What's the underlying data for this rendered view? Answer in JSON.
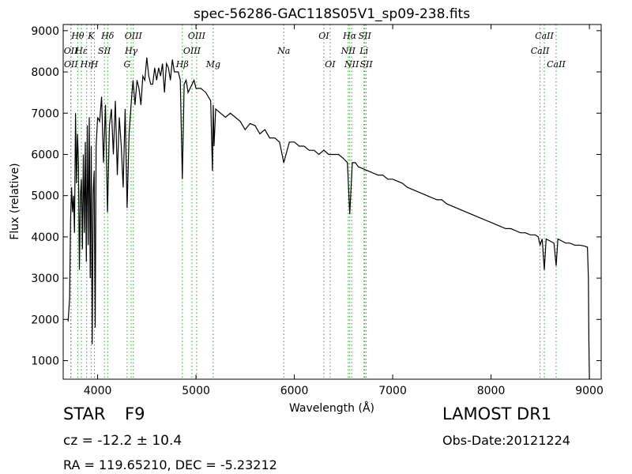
{
  "chart_data": {
    "type": "line",
    "title": "spec-56286-GAC118S05V1_sp09-238.fits",
    "xlabel": "Wavelength (Å)",
    "ylabel": "Flux (relative)",
    "xlim": [
      3650,
      9120
    ],
    "ylim": [
      550,
      9150
    ],
    "xticks": [
      4000,
      5000,
      6000,
      7000,
      8000,
      9000
    ],
    "yticks": [
      1000,
      2000,
      3000,
      4000,
      5000,
      6000,
      7000,
      8000,
      9000
    ],
    "grid": false,
    "line_color": "#000000",
    "marker_color": "#2ca02c",
    "series": [
      {
        "x": [
          3700,
          3715,
          3725,
          3735,
          3745,
          3755,
          3765,
          3775,
          3785,
          3795,
          3805,
          3815,
          3825,
          3835,
          3845,
          3855,
          3865,
          3875,
          3885,
          3895,
          3905,
          3915,
          3925,
          3935,
          3945,
          3955,
          3965,
          3975,
          3985,
          4000,
          4020,
          4040,
          4060,
          4080,
          4101,
          4120,
          4140,
          4160,
          4180,
          4200,
          4220,
          4240,
          4260,
          4280,
          4300,
          4320,
          4340,
          4360,
          4380,
          4400,
          4420,
          4440,
          4460,
          4480,
          4500,
          4520,
          4540,
          4560,
          4580,
          4600,
          4620,
          4640,
          4660,
          4680,
          4700,
          4720,
          4740,
          4760,
          4780,
          4800,
          4820,
          4840,
          4861,
          4880,
          4900,
          4920,
          4940,
          4960,
          4980,
          5000,
          5050,
          5100,
          5150,
          5167,
          5175,
          5183,
          5200,
          5250,
          5300,
          5350,
          5400,
          5450,
          5500,
          5550,
          5600,
          5650,
          5700,
          5750,
          5800,
          5850,
          5893,
          5950,
          6000,
          6050,
          6100,
          6150,
          6200,
          6250,
          6300,
          6350,
          6400,
          6450,
          6500,
          6540,
          6563,
          6590,
          6620,
          6650,
          6700,
          6750,
          6800,
          6850,
          6900,
          6950,
          7000,
          7050,
          7100,
          7150,
          7200,
          7250,
          7300,
          7350,
          7400,
          7450,
          7500,
          7550,
          7600,
          7650,
          7700,
          7750,
          7800,
          7850,
          7900,
          7950,
          8000,
          8050,
          8100,
          8150,
          8200,
          8250,
          8300,
          8350,
          8400,
          8450,
          8480,
          8498,
          8520,
          8542,
          8560,
          8600,
          8640,
          8662,
          8680,
          8720,
          8760,
          8800,
          8850,
          8900,
          8950,
          8980,
          8990,
          8995,
          9000
        ],
        "y": [
          1950,
          2500,
          4400,
          5200,
          4600,
          5000,
          4100,
          7000,
          5300,
          6500,
          5800,
          3200,
          5000,
          5400,
          3700,
          6000,
          4100,
          6300,
          3400,
          6700,
          3800,
          6900,
          3000,
          6200,
          1400,
          5100,
          5600,
          1800,
          6200,
          6900,
          6800,
          7400,
          5800,
          7200,
          4600,
          6700,
          7100,
          6000,
          7300,
          5500,
          6900,
          6200,
          5200,
          7100,
          4700,
          6500,
          7200,
          7800,
          7200,
          7800,
          7600,
          7200,
          7900,
          7800,
          8350,
          7900,
          7700,
          7700,
          8100,
          7800,
          8100,
          7900,
          8200,
          7500,
          8200,
          8100,
          7800,
          8300,
          8000,
          8000,
          8000,
          7800,
          5400,
          7700,
          7800,
          7500,
          7600,
          7700,
          7800,
          7600,
          7600,
          7500,
          7300,
          5600,
          7200,
          6200,
          7100,
          7000,
          6900,
          7000,
          6900,
          6800,
          6600,
          6750,
          6700,
          6500,
          6600,
          6400,
          6400,
          6300,
          5800,
          6300,
          6300,
          6200,
          6200,
          6100,
          6100,
          6000,
          6100,
          6000,
          6000,
          6000,
          5900,
          5800,
          4550,
          5800,
          5800,
          5700,
          5650,
          5600,
          5550,
          5500,
          5500,
          5400,
          5400,
          5350,
          5300,
          5200,
          5150,
          5100,
          5050,
          5000,
          4950,
          4900,
          4900,
          4800,
          4750,
          4700,
          4650,
          4600,
          4550,
          4500,
          4450,
          4400,
          4350,
          4300,
          4250,
          4200,
          4200,
          4150,
          4100,
          4100,
          4050,
          4050,
          4000,
          3800,
          3950,
          3200,
          3950,
          3900,
          3850,
          3300,
          3950,
          3900,
          3850,
          3850,
          3800,
          3800,
          3780,
          3750,
          3000,
          1500,
          550
        ]
      }
    ],
    "lines": [
      {
        "label": "Hθ",
        "x": 3798,
        "row": 1
      },
      {
        "label": "K",
        "x": 3934,
        "row": 1
      },
      {
        "label": "Hδ",
        "x": 4102,
        "row": 1
      },
      {
        "label": "OIII",
        "x": 4363,
        "row": 1
      },
      {
        "label": "OIII",
        "x": 5007,
        "row": 1
      },
      {
        "label": "OI",
        "x": 6300,
        "row": 1
      },
      {
        "label": "Hα",
        "x": 6563,
        "row": 1
      },
      {
        "label": "SII",
        "x": 6716,
        "row": 1
      },
      {
        "label": "CaII",
        "x": 8542,
        "row": 1
      },
      {
        "label": "OII",
        "x": 3727,
        "row": 2
      },
      {
        "label": "Hε",
        "x": 3835,
        "row": 2
      },
      {
        "label": "SII",
        "x": 4069,
        "row": 2
      },
      {
        "label": "Hγ",
        "x": 4341,
        "row": 2
      },
      {
        "label": "OIII",
        "x": 4959,
        "row": 2
      },
      {
        "label": "Na",
        "x": 5893,
        "row": 2
      },
      {
        "label": "NII",
        "x": 6548,
        "row": 2
      },
      {
        "label": "Li",
        "x": 6708,
        "row": 2
      },
      {
        "label": "CaII",
        "x": 8498,
        "row": 2
      },
      {
        "label": "OII",
        "x": 3729,
        "row": 3
      },
      {
        "label": "Hη",
        "x": 3889,
        "row": 3
      },
      {
        "label": "H",
        "x": 3968,
        "row": 3
      },
      {
        "label": "G",
        "x": 4300,
        "row": 3
      },
      {
        "label": "Hβ",
        "x": 4861,
        "row": 3
      },
      {
        "label": "Mg",
        "x": 5175,
        "row": 3
      },
      {
        "label": "OI",
        "x": 6364,
        "row": 3
      },
      {
        "label": "NII",
        "x": 6583,
        "row": 3
      },
      {
        "label": "SII",
        "x": 6731,
        "row": 3
      },
      {
        "label": "CaII",
        "x": 8662,
        "row": 3
      }
    ]
  },
  "info": {
    "object_class": "STAR",
    "subclass": "F9",
    "survey": "LAMOST DR1",
    "cz": "cz = -12.2 ± 10.4",
    "obs_date": "Obs-Date:20121224",
    "radec": "RA = 119.65210, DEC = -5.23212"
  }
}
